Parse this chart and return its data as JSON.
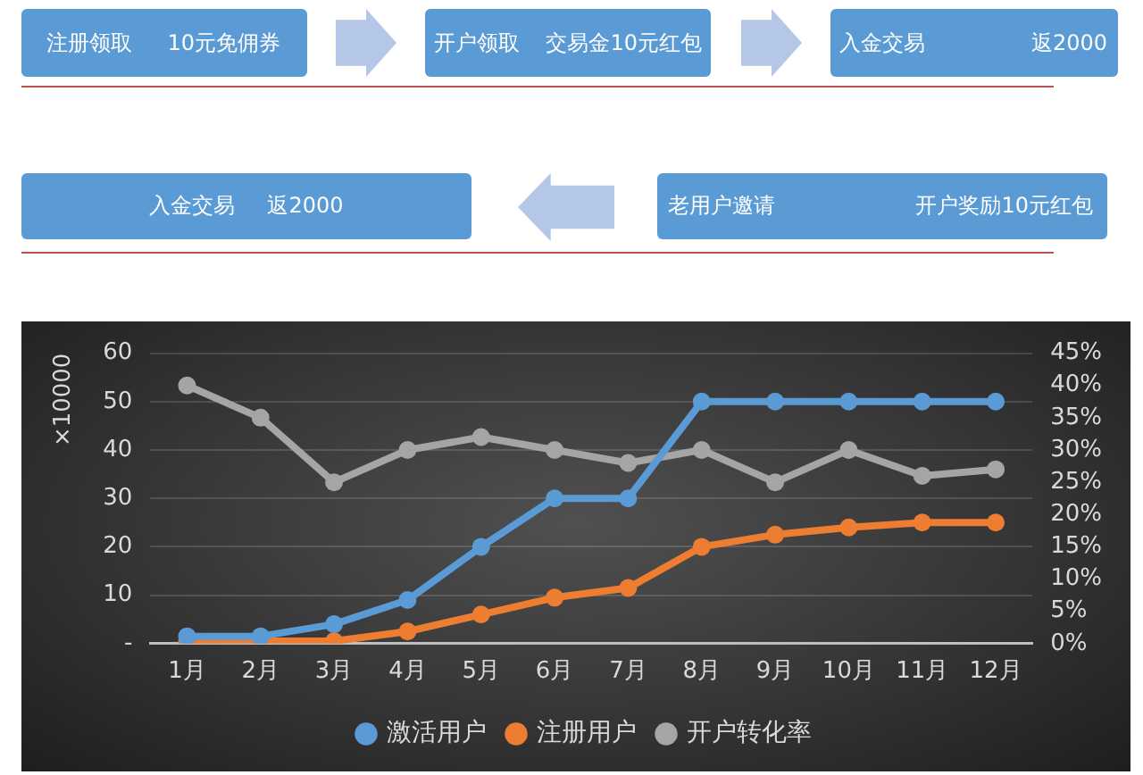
{
  "chart_data": [
    {
      "type": "other",
      "annotations": [
        "注册领取",
        "10元免佣券",
        "开户领取",
        "交易金10元红包",
        "入金交易",
        "返2000",
        "入金交易",
        "返2000",
        "老用户邀请",
        "开户奖励10元红包"
      ]
    },
    {
      "type": "line",
      "ylabel": "×10000",
      "categories": [
        "1月",
        "2月",
        "3月",
        "4月",
        "5月",
        "6月",
        "7月",
        "8月",
        "9月",
        "10月",
        "11月",
        "12月"
      ],
      "series": [
        {
          "name": "激活用户",
          "color": "#5b9bd5",
          "values": [
            1.5,
            1.5,
            4,
            9,
            20,
            30,
            30,
            50,
            50,
            50,
            50,
            50
          ]
        },
        {
          "name": "注册用户",
          "color": "#ed7d31",
          "values": [
            0.5,
            0.5,
            0.5,
            2.5,
            6,
            9.5,
            11.5,
            20,
            22.5,
            24,
            25,
            25
          ]
        },
        {
          "name": "开户转化率",
          "color": "#a5a5a5",
          "axis": "y2",
          "values": [
            40,
            35,
            25,
            30,
            32,
            30,
            28,
            30,
            25,
            30,
            26,
            27
          ]
        }
      ],
      "ylim": [
        0,
        60
      ],
      "yticks": [
        {
          "value": 0,
          "label": "-"
        },
        10,
        20,
        30,
        40,
        50,
        60
      ],
      "y2lim": [
        0,
        45
      ],
      "y2ticks": [
        {
          "value": 0,
          "label": "0%"
        },
        {
          "value": 5,
          "label": "5%"
        },
        {
          "value": 10,
          "label": "10%"
        },
        {
          "value": 15,
          "label": "15%"
        },
        {
          "value": 20,
          "label": "20%"
        },
        {
          "value": 25,
          "label": "25%"
        },
        {
          "value": 30,
          "label": "30%"
        },
        {
          "value": 35,
          "label": "35%"
        },
        {
          "value": 40,
          "label": "40%"
        },
        {
          "value": 45,
          "label": "45%"
        }
      ],
      "grid": "y",
      "legend": "bottom",
      "marker": "circle"
    }
  ]
}
